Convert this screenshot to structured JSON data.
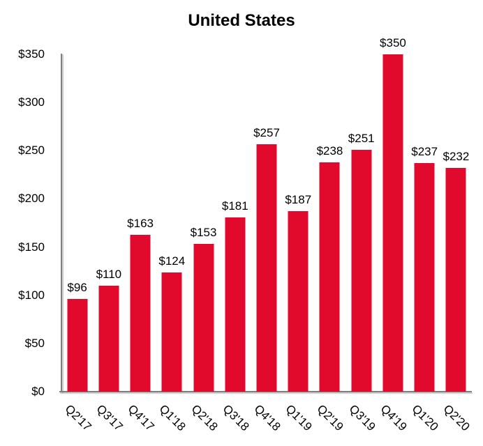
{
  "colors": {
    "bar": "#E10A2D",
    "axis": "#7F7F7F",
    "text": "#000000",
    "background": "#FFFFFF"
  },
  "chart_data": {
    "type": "bar",
    "title": "United States",
    "categories": [
      "Q2'17",
      "Q3'17",
      "Q4'17",
      "Q1'18",
      "Q2'18",
      "Q3'18",
      "Q4'18",
      "Q1'19",
      "Q2'19",
      "Q3'19",
      "Q4'19",
      "Q1'20",
      "Q2'20"
    ],
    "values": [
      96,
      110,
      163,
      124,
      153,
      181,
      257,
      187,
      238,
      251,
      350,
      237,
      232
    ],
    "bar_labels": [
      "$96",
      "$110",
      "$163",
      "$124",
      "$153",
      "$181",
      "$257",
      "$187",
      "$238",
      "$251",
      "$350",
      "$237",
      "$232"
    ],
    "xlabel": "",
    "ylabel": "",
    "ylim": [
      0,
      350
    ],
    "ytick_step": 50,
    "yticks": [
      "$0",
      "$50",
      "$100",
      "$150",
      "$200",
      "$250",
      "$300",
      "$350"
    ],
    "bar_color": "#E10A2D",
    "grid": false,
    "legend": null,
    "x_label_rotation_deg": 45
  }
}
